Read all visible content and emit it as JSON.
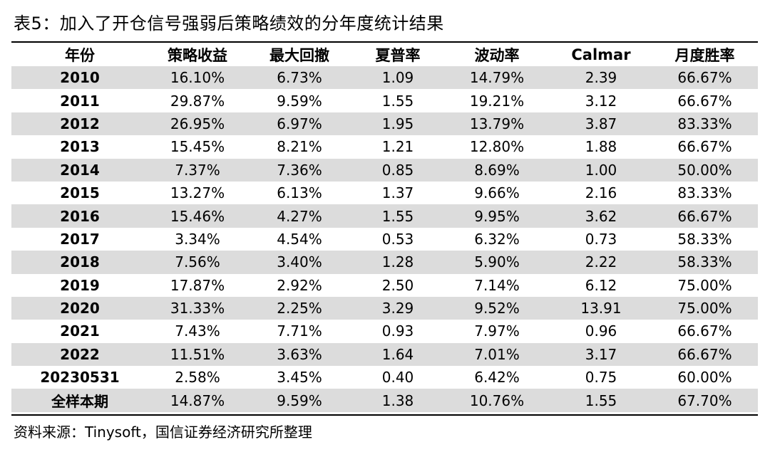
{
  "title": "表5：加入了开仓信号强弱后策略绩效的分年度统计结果",
  "source": "资料来源：Tinysoft，国信证券经济研究所整理",
  "table": {
    "headers": [
      "年份",
      "策略收益",
      "最大回撤",
      "夏普率",
      "波动率",
      "Calmar",
      "月度胜率"
    ],
    "rows": [
      [
        "2010",
        "16.10%",
        "6.73%",
        "1.09",
        "14.79%",
        "2.39",
        "66.67%"
      ],
      [
        "2011",
        "29.87%",
        "9.59%",
        "1.55",
        "19.21%",
        "3.12",
        "66.67%"
      ],
      [
        "2012",
        "26.95%",
        "6.97%",
        "1.95",
        "13.79%",
        "3.87",
        "83.33%"
      ],
      [
        "2013",
        "15.45%",
        "8.21%",
        "1.21",
        "12.80%",
        "1.88",
        "66.67%"
      ],
      [
        "2014",
        "7.37%",
        "7.36%",
        "0.85",
        "8.69%",
        "1.00",
        "50.00%"
      ],
      [
        "2015",
        "13.27%",
        "6.13%",
        "1.37",
        "9.66%",
        "2.16",
        "83.33%"
      ],
      [
        "2016",
        "15.46%",
        "4.27%",
        "1.55",
        "9.95%",
        "3.62",
        "66.67%"
      ],
      [
        "2017",
        "3.34%",
        "4.54%",
        "0.53",
        "6.32%",
        "0.73",
        "58.33%"
      ],
      [
        "2018",
        "7.56%",
        "3.40%",
        "1.28",
        "5.90%",
        "2.22",
        "58.33%"
      ],
      [
        "2019",
        "17.87%",
        "2.92%",
        "2.50",
        "7.14%",
        "6.12",
        "75.00%"
      ],
      [
        "2020",
        "31.33%",
        "2.25%",
        "3.29",
        "9.52%",
        "13.91",
        "75.00%"
      ],
      [
        "2021",
        "7.43%",
        "7.71%",
        "0.93",
        "7.97%",
        "0.96",
        "66.67%"
      ],
      [
        "2022",
        "11.51%",
        "3.63%",
        "1.64",
        "7.01%",
        "3.17",
        "66.67%"
      ],
      [
        "20230531",
        "2.58%",
        "3.45%",
        "0.40",
        "6.42%",
        "0.75",
        "60.00%"
      ],
      [
        "全样本期",
        "14.87%",
        "9.59%",
        "1.38",
        "10.76%",
        "1.55",
        "67.70%"
      ]
    ]
  },
  "colors": {
    "row_shade": "#dcdcdc",
    "rule": "#000000"
  }
}
